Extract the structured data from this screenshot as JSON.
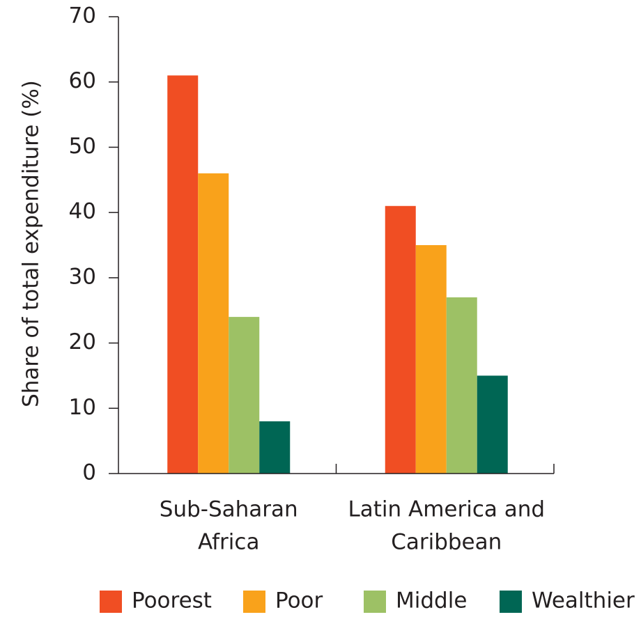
{
  "chart_data": {
    "type": "bar",
    "y_label": "Share of total expenditure (%)",
    "categories": [
      [
        "Sub-Saharan",
        "Africa"
      ],
      [
        "Latin America and",
        "Caribbean"
      ]
    ],
    "series": [
      {
        "name": "Poorest",
        "color": "#f04e23",
        "values": [
          61,
          41
        ]
      },
      {
        "name": "Poor",
        "color": "#f9a21b",
        "values": [
          46,
          35
        ]
      },
      {
        "name": "Middle",
        "color": "#9dc165",
        "values": [
          24,
          27
        ]
      },
      {
        "name": "Wealthier",
        "color": "#006654",
        "values": [
          8,
          15
        ]
      }
    ],
    "ylim": [
      0,
      70
    ],
    "yticks": [
      0,
      10,
      20,
      30,
      40,
      50,
      60,
      70
    ],
    "grid": false,
    "legend": "bottom"
  }
}
